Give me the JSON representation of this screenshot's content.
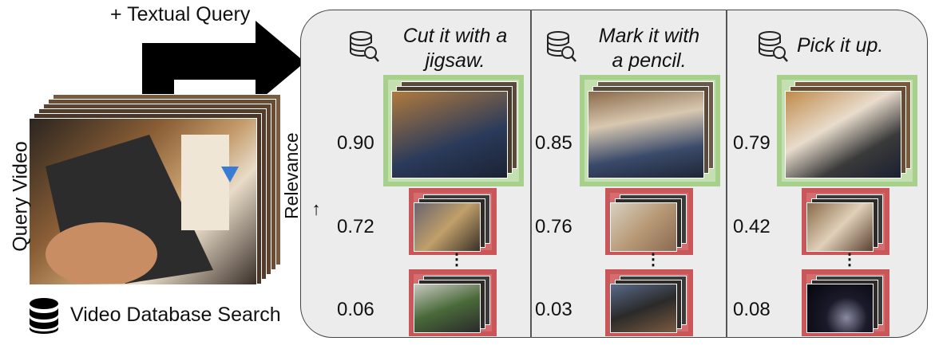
{
  "header": {
    "query_label": "+ Textual Query"
  },
  "left": {
    "query_video_label": "Query Video",
    "db_search_label": "Video Database Search"
  },
  "axis": {
    "relevance_label": "Relevance →"
  },
  "icons": {
    "database": "database-icon",
    "database_search": "database-search-icon"
  },
  "colors": {
    "relevant": "#a8d08d",
    "irrelevant": "#c9575a",
    "panel": "#ececec"
  },
  "columns": [
    {
      "query": "Cut it with a jigsaw.",
      "query_lines": [
        "Cut it with a",
        "jigsaw."
      ],
      "scores": [
        "0.90",
        "0.72",
        "0.06"
      ]
    },
    {
      "query": "Mark it with a pencil.",
      "query_lines": [
        "Mark it with",
        "a pencil."
      ],
      "scores": [
        "0.85",
        "0.76",
        "0.03"
      ]
    },
    {
      "query": "Pick it up.",
      "query_lines": [
        "Pick it up.",
        ""
      ],
      "scores": [
        "0.79",
        "0.42",
        "0.08"
      ]
    }
  ],
  "ellipsis": "⋮"
}
